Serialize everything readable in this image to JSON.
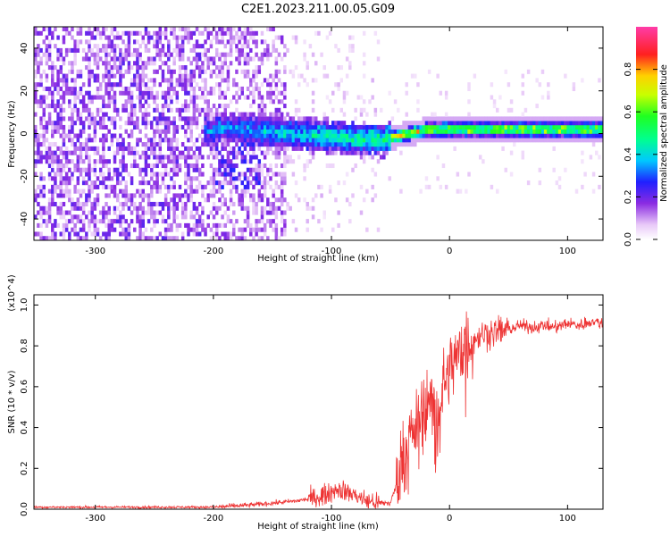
{
  "title": "C2E1.2023.211.00.05.G09",
  "chart_data": [
    {
      "type": "heatmap",
      "xlabel": "Height of straight line (km)",
      "ylabel": "Frequency (Hz)",
      "xlim": [
        -352,
        130
      ],
      "ylim": [
        -50,
        50
      ],
      "xticks": [
        -300,
        -200,
        -100,
        0,
        100
      ],
      "yticks": [
        -40,
        -20,
        0,
        20,
        40
      ],
      "colorbar": {
        "label": "Normalized spectral amplitude",
        "range": [
          0,
          1
        ],
        "ticks": [
          0.0,
          0.2,
          0.4,
          0.6,
          0.8
        ],
        "colormap": "white-purple-blue-cyan-green-yellow-red-magenta"
      },
      "features": {
        "noise_region_km": [
          -352,
          -140
        ],
        "sparse_region_km": [
          -140,
          -60
        ],
        "signal_start_km": -210,
        "strong_signal_start_km": -45,
        "signal_center_freq_hz": 0
      }
    },
    {
      "type": "line",
      "xlabel": "Height of straight line (km)",
      "ylabel": "SNR (10 * v/v)",
      "scale_label": "(x10^4)",
      "xlim": [
        -352,
        130
      ],
      "ylim": [
        0,
        1.05
      ],
      "xticks": [
        -300,
        -200,
        -100,
        0,
        100
      ],
      "yticks": [
        0.0,
        0.2,
        0.4,
        0.6,
        0.8,
        1.0
      ],
      "series": [
        {
          "name": "SNR",
          "color": "#ee3333",
          "x": [
            -352,
            -300,
            -250,
            -200,
            -170,
            -150,
            -130,
            -110,
            -95,
            -80,
            -70,
            -60,
            -50,
            -45,
            -40,
            -35,
            -30,
            -25,
            -20,
            -15,
            -10,
            -5,
            0,
            5,
            10,
            15,
            20,
            30,
            40,
            50,
            60,
            70,
            80,
            90,
            100,
            110,
            120,
            130
          ],
          "y": [
            0.01,
            0.01,
            0.01,
            0.01,
            0.02,
            0.03,
            0.04,
            0.06,
            0.1,
            0.07,
            0.04,
            0.03,
            0.03,
            0.12,
            0.26,
            0.33,
            0.38,
            0.46,
            0.56,
            0.5,
            0.48,
            0.62,
            0.68,
            0.74,
            0.78,
            0.8,
            0.83,
            0.86,
            0.87,
            0.88,
            0.9,
            0.89,
            0.9,
            0.89,
            0.91,
            0.9,
            0.92,
            0.91
          ]
        }
      ]
    }
  ]
}
